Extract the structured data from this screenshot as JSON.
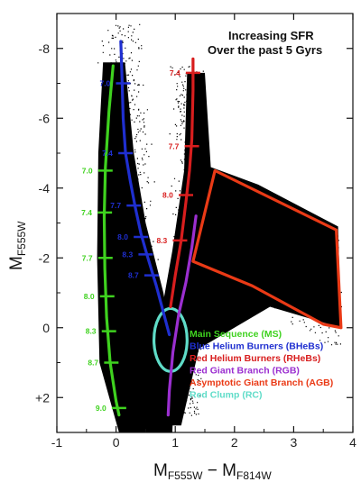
{
  "chart_data": {
    "type": "scatter",
    "title": "",
    "annotation": [
      "Increasing SFR",
      "Over the past 5 Gyrs"
    ],
    "xlabel": {
      "main": "M",
      "sub1": "F555W",
      "dash": " − M",
      "sub2": "F814W"
    },
    "ylabel": {
      "main": "M",
      "sub": "F555W"
    },
    "xlim": [
      -1,
      4
    ],
    "ylim": [
      3,
      -9
    ],
    "y_inverted": true,
    "grid": false,
    "x_ticks": [
      -1,
      0,
      1,
      2,
      3,
      4
    ],
    "x_tick_labels": [
      "-1",
      "0",
      "1",
      "2",
      "3",
      "4"
    ],
    "y_ticks": [
      -8,
      -6,
      -4,
      -2,
      0,
      2
    ],
    "y_tick_labels": [
      "-8",
      "-6",
      "-4",
      "-2",
      "0",
      "+2"
    ],
    "legend_placement": "bottom-right",
    "legend": [
      {
        "label": "Main Sequence (MS)",
        "color": "#3fd21f"
      },
      {
        "label": "Blue Helium Burners (BHeBs)",
        "color": "#1f2fd0"
      },
      {
        "label": "Red Helium Burners (RHeBs)",
        "color": "#d81e1e"
      },
      {
        "label": "Red Giant Branch (RGB)",
        "color": "#9b2fd0"
      },
      {
        "label": "Asymptotic Giant Branch (AGB)",
        "color": "#ea3a16"
      },
      {
        "label": "Red Clump (RC)",
        "color": "#5fdcc8"
      }
    ],
    "series": [
      {
        "name": "Main Sequence (MS)",
        "color": "#3fd21f",
        "points": [
          [
            -0.05,
            -7.5
          ],
          [
            -0.12,
            -6.2
          ],
          [
            -0.18,
            -4.6
          ],
          [
            -0.2,
            -3.2
          ],
          [
            -0.19,
            -1.7
          ],
          [
            -0.16,
            -0.3
          ],
          [
            -0.1,
            1.0
          ],
          [
            0.0,
            2.1
          ],
          [
            0.05,
            2.5
          ]
        ],
        "age_ticks": [
          {
            "label": "7.0",
            "x": -0.18,
            "y": -4.5
          },
          {
            "label": "7.4",
            "x": -0.19,
            "y": -3.3
          },
          {
            "label": "7.7",
            "x": -0.18,
            "y": -2.0
          },
          {
            "label": "8.0",
            "x": -0.15,
            "y": -0.9
          },
          {
            "label": "8.3",
            "x": -0.12,
            "y": 0.1
          },
          {
            "label": "8.7",
            "x": -0.08,
            "y": 1.0
          },
          {
            "label": "9.0",
            "x": 0.05,
            "y": 2.3
          }
        ]
      },
      {
        "name": "Blue Helium Burners (BHeBs)",
        "color": "#1f2fd0",
        "points": [
          [
            0.08,
            -8.2
          ],
          [
            0.1,
            -7.2
          ],
          [
            0.12,
            -6.0
          ],
          [
            0.16,
            -5.0
          ],
          [
            0.24,
            -4.2
          ],
          [
            0.33,
            -3.4
          ],
          [
            0.42,
            -2.7
          ],
          [
            0.52,
            -2.1
          ],
          [
            0.68,
            -1.2
          ],
          [
            0.9,
            0.2
          ]
        ],
        "age_ticks": [
          {
            "label": "7.0",
            "x": 0.12,
            "y": -7.0
          },
          {
            "label": "7.4",
            "x": 0.16,
            "y": -5.0
          },
          {
            "label": "7.7",
            "x": 0.3,
            "y": -3.5
          },
          {
            "label": "8.0",
            "x": 0.42,
            "y": -2.6
          },
          {
            "label": "8.3",
            "x": 0.5,
            "y": -2.1
          },
          {
            "label": "8.7",
            "x": 0.6,
            "y": -1.5
          }
        ]
      },
      {
        "name": "Red Helium Burners (RHeBs)",
        "color": "#d81e1e",
        "points": [
          [
            1.3,
            -7.7
          ],
          [
            1.3,
            -6.8
          ],
          [
            1.28,
            -5.4
          ],
          [
            1.24,
            -4.5
          ],
          [
            1.18,
            -3.6
          ],
          [
            1.1,
            -2.5
          ],
          [
            1.0,
            -1.5
          ],
          [
            0.92,
            -0.6
          ]
        ],
        "age_ticks": [
          {
            "label": "7.4",
            "x": 1.3,
            "y": -7.3
          },
          {
            "label": "7.7",
            "x": 1.28,
            "y": -5.2
          },
          {
            "label": "8.0",
            "x": 1.18,
            "y": -3.8
          },
          {
            "label": "8.3",
            "x": 1.08,
            "y": -2.5
          }
        ]
      },
      {
        "name": "Red Giant Branch (RGB)",
        "color": "#9b2fd0",
        "points": [
          [
            1.35,
            -3.2
          ],
          [
            1.28,
            -2.3
          ],
          [
            1.18,
            -1.3
          ],
          [
            1.06,
            -0.4
          ],
          [
            0.96,
            0.7
          ],
          [
            0.9,
            1.8
          ],
          [
            0.88,
            2.5
          ]
        ]
      }
    ],
    "regions": [
      {
        "name": "Asymptotic Giant Branch (AGB)",
        "color": "#ea3a16",
        "polygon": [
          [
            1.67,
            -4.5
          ],
          [
            3.72,
            -2.8
          ],
          [
            3.8,
            0.0
          ],
          [
            3.5,
            -0.1
          ],
          [
            2.3,
            -1.2
          ],
          [
            1.3,
            -1.9
          ]
        ]
      },
      {
        "name": "Red Clump (RC)",
        "color": "#5fdcc8",
        "ellipse": {
          "cx": 0.92,
          "cy": 0.35,
          "rx": 0.28,
          "ry": 0.9
        }
      }
    ],
    "data_cloud": {
      "color": "#000000",
      "description_points_ms": [
        [
          -0.2,
          -7.5
        ],
        [
          0.0,
          -7.5
        ],
        [
          -0.3,
          -4
        ],
        [
          0.1,
          -4
        ],
        [
          -0.3,
          0
        ],
        [
          0.3,
          0
        ],
        [
          -0.2,
          2.5
        ],
        [
          0.9,
          2.5
        ]
      ],
      "description_points_rgb": [
        [
          0.9,
          2.5
        ],
        [
          0.7,
          0
        ],
        [
          1.0,
          -2
        ],
        [
          1.7,
          -4.4
        ],
        [
          3.7,
          -2.8
        ],
        [
          3.8,
          0
        ]
      ]
    }
  }
}
